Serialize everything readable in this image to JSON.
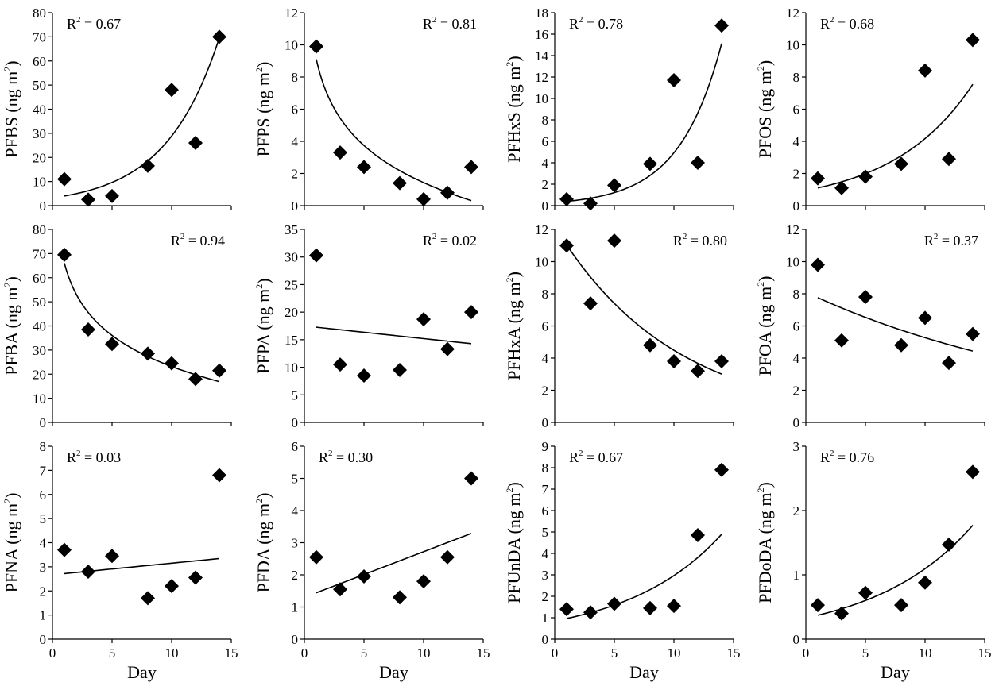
{
  "chart_data": [
    {
      "type": "scatter",
      "ylabel_base": "PFBS",
      "ylabel_unit_open": " (ng m",
      "ylabel_unit_close": ")",
      "sup": "2",
      "x": [
        1,
        3,
        5,
        8,
        10,
        12,
        14
      ],
      "y": [
        11,
        2.5,
        4,
        16.5,
        48,
        26,
        70
      ],
      "ylim": [
        0,
        80
      ],
      "yticks": [
        0,
        10,
        20,
        30,
        40,
        50,
        60,
        70,
        80
      ],
      "xlim": [
        0,
        15
      ],
      "xticks": [
        0,
        5,
        10,
        15
      ],
      "xlabel": "",
      "trend": {
        "model": "exp",
        "a": 3.2,
        "b": 0.22
      },
      "r2_prefix": "R",
      "r2_value": " = 0.67",
      "r2_pos": "top-left"
    },
    {
      "type": "scatter",
      "ylabel_base": "PFPS",
      "ylabel_unit_open": " (ng m",
      "ylabel_unit_close": ")",
      "sup": "2",
      "x": [
        1,
        3,
        5,
        8,
        10,
        12,
        14
      ],
      "y": [
        9.9,
        3.3,
        2.4,
        1.4,
        0.4,
        0.8,
        2.4
      ],
      "ylim": [
        0,
        12
      ],
      "yticks": [
        0,
        2,
        4,
        6,
        8,
        10,
        12
      ],
      "xlim": [
        0,
        15
      ],
      "xticks": [
        0,
        5,
        10,
        15
      ],
      "xlabel": "",
      "trend": {
        "model": "log",
        "a": 9.1,
        "b": -3.33
      },
      "r2_prefix": "R",
      "r2_value": " = 0.81",
      "r2_pos": "top-right"
    },
    {
      "type": "scatter",
      "ylabel_base": "PFHxS",
      "ylabel_unit_open": " (ng m",
      "ylabel_unit_close": ")",
      "sup": "2",
      "x": [
        1,
        3,
        5,
        8,
        10,
        12,
        14
      ],
      "y": [
        0.6,
        0.2,
        1.9,
        3.9,
        11.7,
        4.0,
        16.8
      ],
      "ylim": [
        0,
        18
      ],
      "yticks": [
        0,
        2,
        4,
        6,
        8,
        10,
        12,
        14,
        16,
        18
      ],
      "xlim": [
        0,
        15
      ],
      "xticks": [
        0,
        5,
        10,
        15
      ],
      "xlabel": "",
      "trend": {
        "model": "exp",
        "a": 0.3,
        "b": 0.28
      },
      "r2_prefix": "R",
      "r2_value": " = 0.78",
      "r2_pos": "top-left"
    },
    {
      "type": "scatter",
      "ylabel_base": "PFOS",
      "ylabel_unit_open": " (ng m",
      "ylabel_unit_close": ")",
      "sup": "2",
      "x": [
        1,
        3,
        5,
        8,
        10,
        12,
        14
      ],
      "y": [
        1.7,
        1.1,
        1.8,
        2.6,
        8.4,
        2.9,
        10.3
      ],
      "ylim": [
        0,
        12
      ],
      "yticks": [
        0,
        2,
        4,
        6,
        8,
        10,
        12
      ],
      "xlim": [
        0,
        15
      ],
      "xticks": [
        0,
        5,
        10,
        15
      ],
      "xlabel": "",
      "trend": {
        "model": "exp",
        "a": 0.95,
        "b": 0.148
      },
      "r2_prefix": "R",
      "r2_value": " = 0.68",
      "r2_pos": "top-left"
    },
    {
      "type": "scatter",
      "ylabel_base": "PFBA",
      "ylabel_unit_open": " (ng m",
      "ylabel_unit_close": ")",
      "sup": "2",
      "x": [
        1,
        3,
        5,
        8,
        10,
        12,
        14
      ],
      "y": [
        69.5,
        38.5,
        32.5,
        28.5,
        24.5,
        18,
        21.5
      ],
      "ylim": [
        0,
        80
      ],
      "yticks": [
        0,
        10,
        20,
        30,
        40,
        50,
        60,
        70,
        80
      ],
      "xlim": [
        0,
        15
      ],
      "xticks": [
        0,
        5,
        10,
        15
      ],
      "xlabel": "",
      "trend": {
        "model": "log",
        "a": 66,
        "b": -18.6
      },
      "r2_prefix": "R",
      "r2_value": " = 0.94",
      "r2_pos": "top-right"
    },
    {
      "type": "scatter",
      "ylabel_base": "PFPA",
      "ylabel_unit_open": " (ng m",
      "ylabel_unit_close": ")",
      "sup": "2",
      "x": [
        1,
        3,
        5,
        8,
        10,
        12,
        14
      ],
      "y": [
        30.3,
        10.5,
        8.5,
        9.5,
        18.7,
        13.3,
        20
      ],
      "ylim": [
        0,
        35
      ],
      "yticks": [
        0,
        5,
        10,
        15,
        20,
        25,
        30,
        35
      ],
      "xlim": [
        0,
        15
      ],
      "xticks": [
        0,
        5,
        10,
        15
      ],
      "xlabel": "",
      "trend": {
        "model": "linear",
        "a": 17.5,
        "b": -0.23
      },
      "r2_prefix": "R",
      "r2_value": " = 0.02",
      "r2_pos": "top-right"
    },
    {
      "type": "scatter",
      "ylabel_base": "PFHxA",
      "ylabel_unit_open": " (ng m",
      "ylabel_unit_close": ")",
      "sup": "2",
      "x": [
        1,
        3,
        5,
        8,
        10,
        12,
        14
      ],
      "y": [
        11,
        7.4,
        11.3,
        4.8,
        3.8,
        3.2,
        3.8
      ],
      "ylim": [
        0,
        12
      ],
      "yticks": [
        0,
        2,
        4,
        6,
        8,
        10,
        12
      ],
      "xlim": [
        0,
        15
      ],
      "xticks": [
        0,
        5,
        10,
        15
      ],
      "xlabel": "",
      "trend": {
        "model": "exp",
        "a": 12.2,
        "b": -0.1
      },
      "r2_prefix": "R",
      "r2_value": " = 0.80",
      "r2_pos": "top-right"
    },
    {
      "type": "scatter",
      "ylabel_base": "PFOA",
      "ylabel_unit_open": " (ng m",
      "ylabel_unit_close": ")",
      "sup": "2",
      "x": [
        1,
        3,
        5,
        8,
        10,
        12,
        14
      ],
      "y": [
        9.8,
        5.1,
        7.8,
        4.8,
        6.5,
        3.7,
        5.5
      ],
      "ylim": [
        0,
        12
      ],
      "yticks": [
        0,
        2,
        4,
        6,
        8,
        10,
        12
      ],
      "xlim": [
        0,
        15
      ],
      "xticks": [
        0,
        5,
        10,
        15
      ],
      "xlabel": "",
      "trend": {
        "model": "exp",
        "a": 8.1,
        "b": -0.043
      },
      "r2_prefix": "R",
      "r2_value": " = 0.37",
      "r2_pos": "top-right"
    },
    {
      "type": "scatter",
      "ylabel_base": "PFNA",
      "ylabel_unit_open": " (ng m",
      "ylabel_unit_close": ")",
      "sup": "2",
      "x": [
        1,
        3,
        5,
        8,
        10,
        12,
        14
      ],
      "y": [
        3.7,
        2.8,
        3.45,
        1.7,
        2.2,
        2.55,
        6.8
      ],
      "ylim": [
        0,
        8
      ],
      "yticks": [
        0,
        1,
        2,
        3,
        4,
        5,
        6,
        7,
        8
      ],
      "xlim": [
        0,
        15
      ],
      "xticks": [
        0,
        5,
        10,
        15
      ],
      "xlabel": "Day",
      "trend": {
        "model": "linear",
        "a": 2.67,
        "b": 0.048
      },
      "r2_prefix": "R",
      "r2_value": " = 0.03",
      "r2_pos": "top-left"
    },
    {
      "type": "scatter",
      "ylabel_base": "PFDA",
      "ylabel_unit_open": " (ng m",
      "ylabel_unit_close": ")",
      "sup": "2",
      "x": [
        1,
        3,
        5,
        8,
        10,
        12,
        14
      ],
      "y": [
        2.55,
        1.55,
        1.95,
        1.3,
        1.8,
        2.55,
        5
      ],
      "ylim": [
        0,
        6
      ],
      "yticks": [
        0,
        1,
        2,
        3,
        4,
        5,
        6
      ],
      "xlim": [
        0,
        15
      ],
      "xticks": [
        0,
        5,
        10,
        15
      ],
      "xlabel": "Day",
      "trend": {
        "model": "linear",
        "a": 1.3,
        "b": 0.142
      },
      "r2_prefix": "R",
      "r2_value": " = 0.30",
      "r2_pos": "top-left"
    },
    {
      "type": "scatter",
      "ylabel_base": "PFUnDA",
      "ylabel_unit_open": " (ng m",
      "ylabel_unit_close": ")",
      "sup": "2",
      "x": [
        1,
        3,
        5,
        8,
        10,
        12,
        14
      ],
      "y": [
        1.4,
        1.25,
        1.65,
        1.45,
        1.55,
        4.85,
        7.9
      ],
      "ylim": [
        0,
        9
      ],
      "yticks": [
        0,
        1,
        2,
        3,
        4,
        5,
        6,
        7,
        8,
        9
      ],
      "xlim": [
        0,
        15
      ],
      "xticks": [
        0,
        5,
        10,
        15
      ],
      "xlabel": "Day",
      "trend": {
        "model": "exp",
        "a": 0.85,
        "b": 0.125
      },
      "r2_prefix": "R",
      "r2_value": " = 0.67",
      "r2_pos": "top-left"
    },
    {
      "type": "scatter",
      "ylabel_base": "PFDoDA",
      "ylabel_unit_open": " (ng m",
      "ylabel_unit_close": ")",
      "sup": "2",
      "x": [
        1,
        3,
        5,
        8,
        10,
        12,
        14
      ],
      "y": [
        0.53,
        0.4,
        0.72,
        0.53,
        0.88,
        1.47,
        2.6
      ],
      "ylim": [
        0,
        3
      ],
      "yticks": [
        0,
        1,
        2,
        3
      ],
      "xlim": [
        0,
        15
      ],
      "xticks": [
        0,
        5,
        10,
        15
      ],
      "xlabel": "Day",
      "trend": {
        "model": "exp",
        "a": 0.33,
        "b": 0.12
      },
      "r2_prefix": "R",
      "r2_value": " = 0.76",
      "r2_pos": "top-left"
    }
  ]
}
